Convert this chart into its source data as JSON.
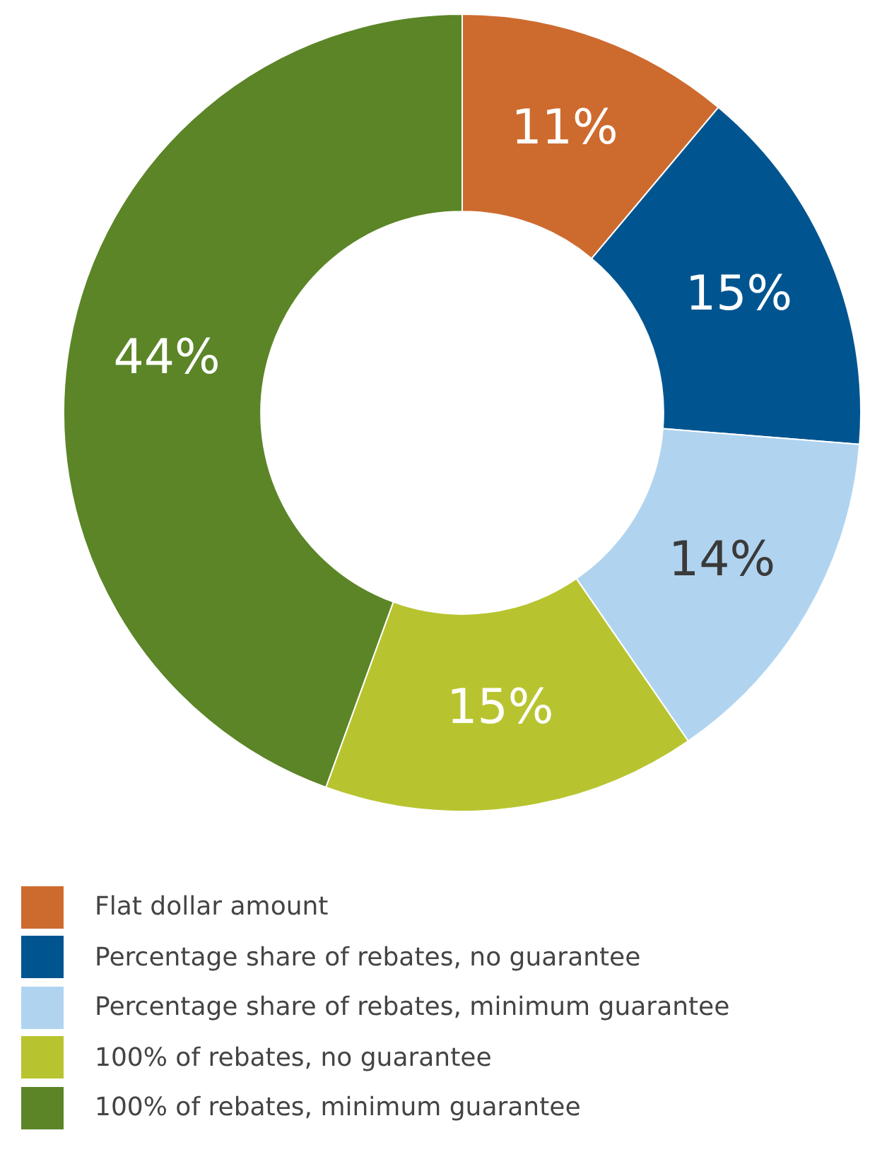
{
  "chart_data": {
    "type": "donut",
    "categories": [
      "Flat dollar amount",
      "Percentage share of rebates, no guarantee",
      "Percentage share of rebates, minimum guarantee",
      "100% of rebates, no guarantee",
      "100% of rebates, minimum guarantee"
    ],
    "values": [
      11,
      15,
      14,
      15,
      44
    ],
    "colors": [
      "#cd6b2f",
      "#005591",
      "#b0d4f0",
      "#b8c42f",
      "#5b8527"
    ],
    "value_labels": [
      "11%",
      "15%",
      "14%",
      "15%",
      "44%"
    ],
    "legend": "bottom"
  }
}
